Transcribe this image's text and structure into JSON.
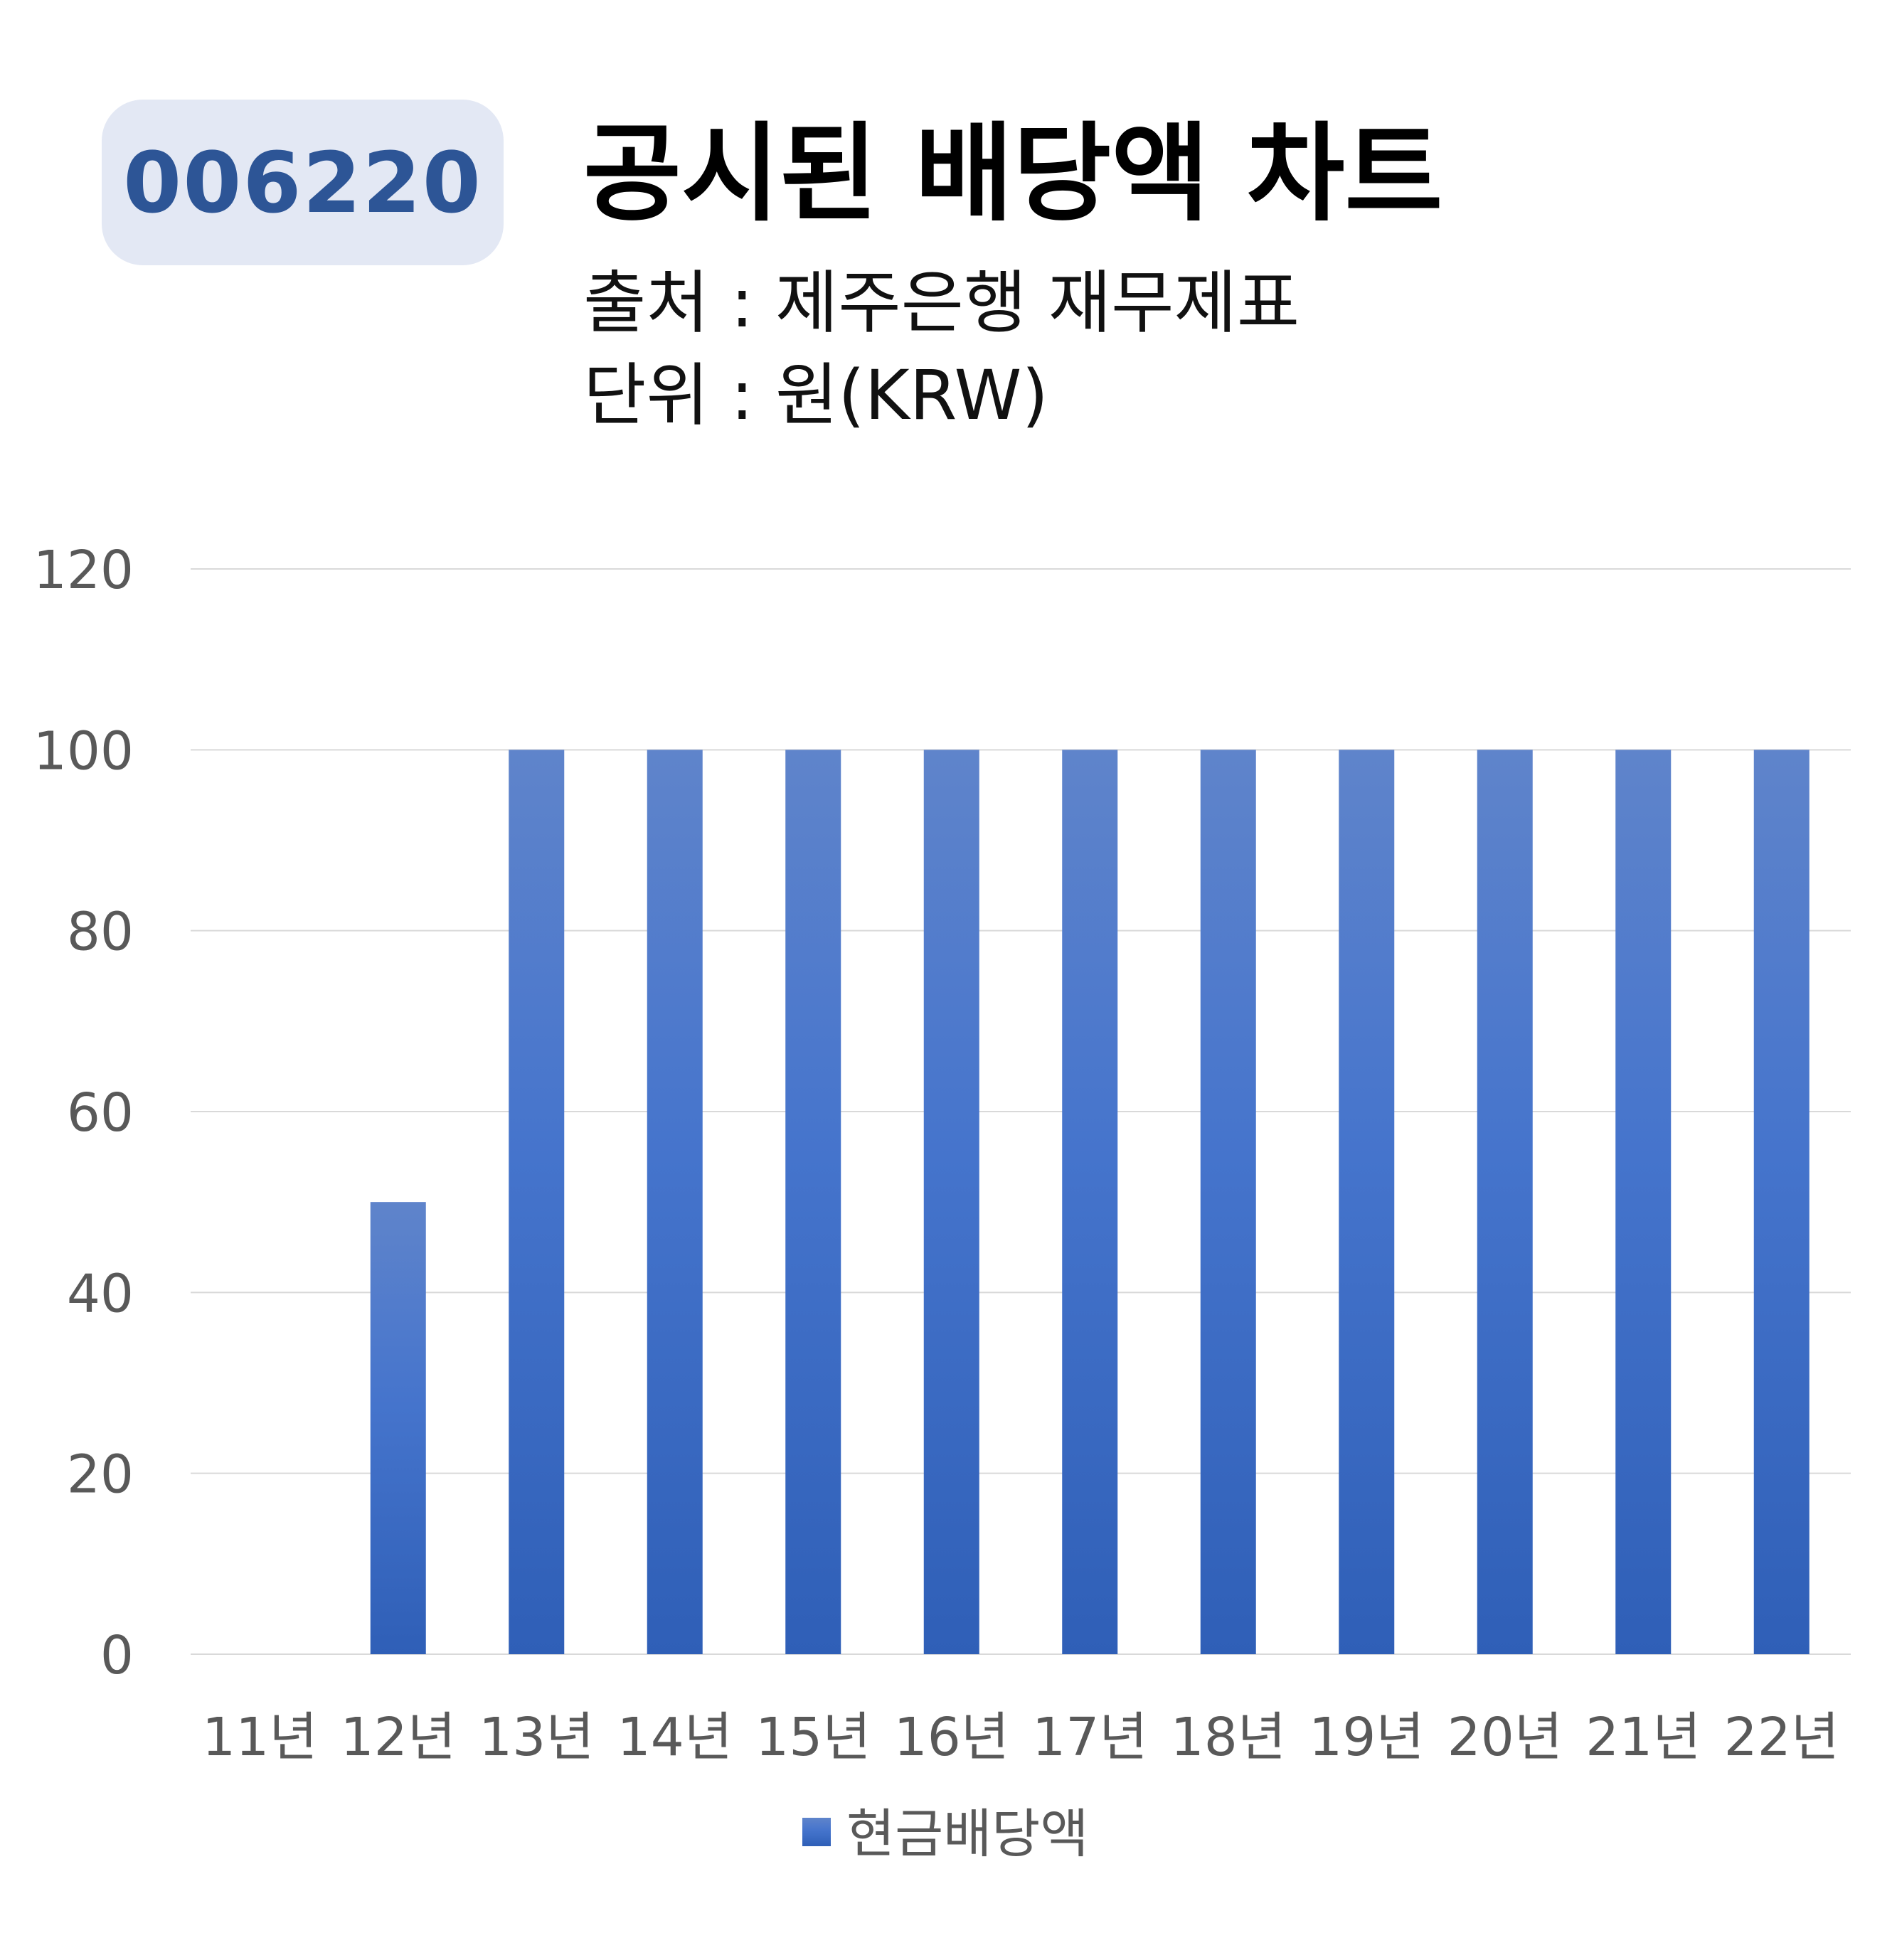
{
  "header": {
    "code": "006220",
    "title": "공시된 배당액 차트",
    "source": "출처 : 제주은행 재무제표",
    "unit": "단위 : 원(KRW)"
  },
  "colors": {
    "bar_top": "#5f84cb",
    "bar_bottom": "#2f5fb7",
    "badge_bg": "#e3e8f4",
    "badge_text": "#2d5596",
    "grid": "#d9d9d9",
    "tick_text": "#595959"
  },
  "chart_data": {
    "type": "bar",
    "categories": [
      "11년",
      "12년",
      "13년",
      "14년",
      "15년",
      "16년",
      "17년",
      "18년",
      "19년",
      "20년",
      "21년",
      "22년"
    ],
    "series": [
      {
        "name": "현금배당액",
        "values": [
          0,
          50,
          100,
          100,
          100,
          100,
          100,
          100,
          100,
          100,
          100,
          100
        ]
      }
    ],
    "ylim": [
      0,
      120
    ],
    "yticks": [
      0,
      20,
      40,
      60,
      80,
      100,
      120
    ],
    "grid": true,
    "legend": "bottom"
  }
}
